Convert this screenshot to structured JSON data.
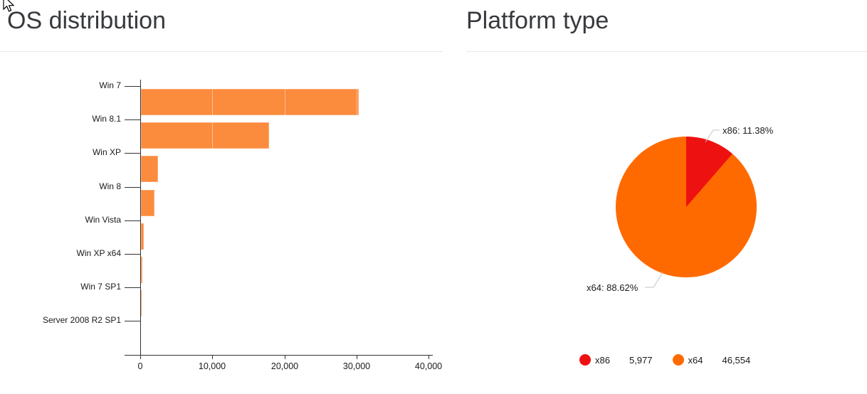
{
  "ui": {
    "cursor": "arrow-pointer"
  },
  "left_panel": {
    "title": "OS distribution"
  },
  "right_panel": {
    "title": "Platform type"
  },
  "chart_data": [
    {
      "type": "bar",
      "title": "OS distribution",
      "orientation": "horizontal",
      "categories": [
        "Win 7",
        "Win 8.1",
        "Win XP",
        "Win 8",
        "Win Vista",
        "Win XP x64",
        "Win 7 SP1",
        "Server 2008 R2 SP1"
      ],
      "values": [
        30200,
        17800,
        2350,
        1880,
        350,
        150,
        50,
        15
      ],
      "xlabel": "",
      "ylabel": "",
      "xlim": [
        0,
        40000
      ],
      "x_ticks": [
        0,
        10000,
        20000,
        30000,
        40000
      ],
      "x_tick_labels": [
        "0",
        "10,000",
        "20,000",
        "30,000",
        "40,000"
      ],
      "bar_color": "#fb8b3d",
      "axis_color": "#333333",
      "grid": false,
      "legend_position": "none"
    },
    {
      "type": "pie",
      "title": "Platform type",
      "slices": [
        {
          "label": "x86",
          "value": 5977,
          "display_value": "5,977",
          "percent": 11.38,
          "callout": "x86: 11.38%",
          "color": "#ee1111"
        },
        {
          "label": "x64",
          "value": 46554,
          "display_value": "46,554",
          "percent": 88.62,
          "callout": "x64: 88.62%",
          "color": "#ff6a00"
        }
      ],
      "start_angle": "top",
      "direction": "clockwise",
      "leader_line_color": "#c4c4c4",
      "legend_position": "bottom"
    }
  ]
}
